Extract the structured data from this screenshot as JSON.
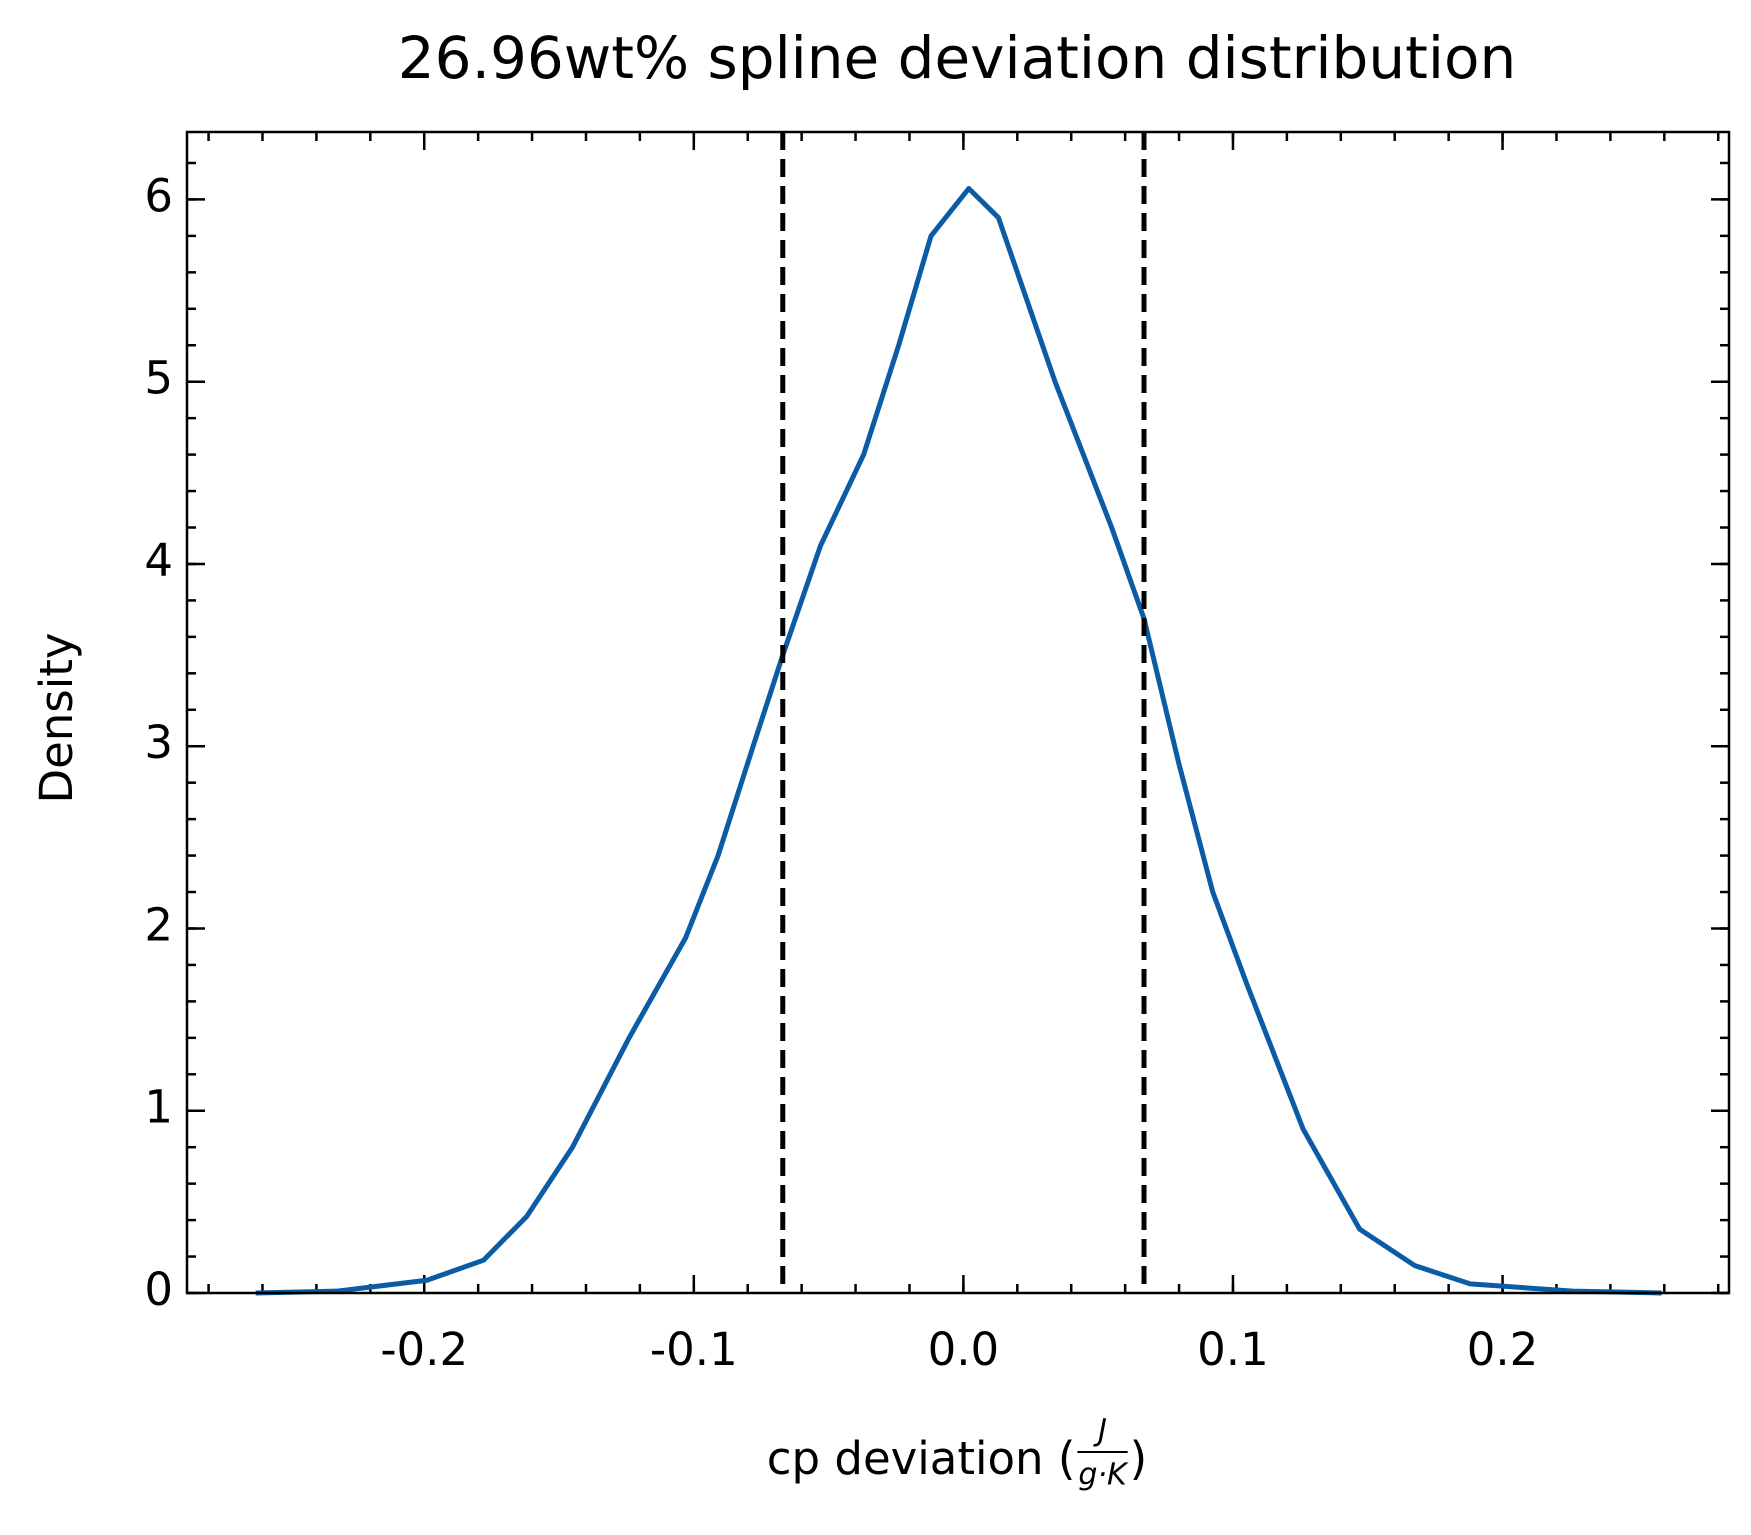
{
  "chart_data": {
    "type": "line",
    "title": "26.96wt% spline deviation distribution",
    "xlabel": [
      "cp deviation (",
      "J",
      "g·K",
      ")"
    ],
    "ylabel": "Density",
    "x": [
      -0.2625,
      -0.2325,
      -0.199,
      -0.178,
      -0.162,
      -0.145,
      -0.124,
      -0.103,
      -0.091,
      -0.078,
      -0.067,
      -0.053,
      -0.037,
      -0.024,
      -0.012,
      0.002,
      0.013,
      0.034,
      0.055,
      0.067,
      0.08,
      0.0925,
      0.105,
      0.126,
      0.147,
      0.1675,
      0.188,
      0.226,
      0.259
    ],
    "series": [
      {
        "name": "density",
        "color": "#0c5ba5",
        "values": [
          0,
          0.01,
          0.07,
          0.18,
          0.42,
          0.8,
          1.4,
          1.95,
          2.4,
          3.0,
          3.5,
          4.1,
          4.6,
          5.2,
          5.8,
          6.06,
          5.9,
          5.0,
          4.2,
          3.7,
          2.9,
          2.2,
          1.7,
          0.9,
          0.35,
          0.15,
          0.05,
          0.01,
          0
        ]
      }
    ],
    "vlines": [
      -0.067,
      0.067
    ],
    "vline_color": "#000000",
    "xlim": [
      -0.288,
      0.284
    ],
    "ylim": [
      0,
      6.37
    ],
    "xticks": [
      -0.2,
      -0.1,
      {
        "value": 0,
        "label": "0.0"
      },
      0.1,
      0.2
    ],
    "yticks": [
      0,
      1,
      2,
      3,
      4,
      5,
      6
    ]
  }
}
